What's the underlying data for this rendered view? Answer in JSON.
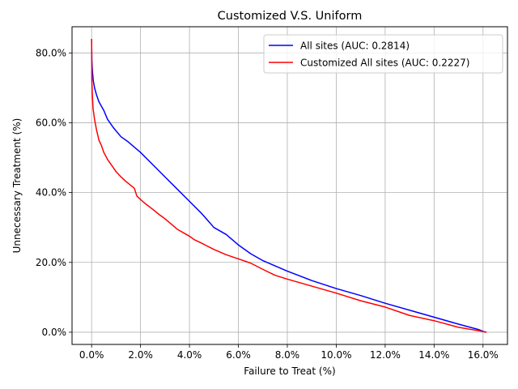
{
  "chart_data": {
    "type": "line",
    "title": "Customized V.S. Uniform",
    "xlabel": "Failure to Treat (%)",
    "ylabel": "Unnecessary Treatment (%)",
    "xlim": [
      -0.008,
      0.17
    ],
    "ylim": [
      -0.035,
      0.875
    ],
    "x_ticks": [
      0.0,
      0.02,
      0.04,
      0.06,
      0.08,
      0.1,
      0.12,
      0.14,
      0.16
    ],
    "x_tick_labels": [
      "0.0%",
      "2.0%",
      "4.0%",
      "6.0%",
      "8.0%",
      "10.0%",
      "12.0%",
      "14.0%",
      "16.0%"
    ],
    "y_ticks": [
      0.0,
      0.2,
      0.4,
      0.6,
      0.8
    ],
    "y_tick_labels": [
      "0.0%",
      "20.0%",
      "40.0%",
      "60.0%",
      "80.0%"
    ],
    "grid": true,
    "legend_position": "top-right",
    "series": [
      {
        "name": "All sites (AUC: 0.2814)",
        "color": "#0000ff",
        "points": [
          [
            0.0,
            0.84
          ],
          [
            0.0001,
            0.78
          ],
          [
            0.0003,
            0.75
          ],
          [
            0.0007,
            0.72
          ],
          [
            0.0012,
            0.7
          ],
          [
            0.002,
            0.68
          ],
          [
            0.003,
            0.66
          ],
          [
            0.005,
            0.635
          ],
          [
            0.0065,
            0.61
          ],
          [
            0.009,
            0.585
          ],
          [
            0.012,
            0.56
          ],
          [
            0.015,
            0.545
          ],
          [
            0.02,
            0.515
          ],
          [
            0.025,
            0.48
          ],
          [
            0.03,
            0.445
          ],
          [
            0.035,
            0.41
          ],
          [
            0.04,
            0.375
          ],
          [
            0.045,
            0.34
          ],
          [
            0.05,
            0.3
          ],
          [
            0.055,
            0.28
          ],
          [
            0.06,
            0.25
          ],
          [
            0.065,
            0.225
          ],
          [
            0.07,
            0.205
          ],
          [
            0.075,
            0.19
          ],
          [
            0.08,
            0.175
          ],
          [
            0.09,
            0.148
          ],
          [
            0.1,
            0.125
          ],
          [
            0.11,
            0.105
          ],
          [
            0.12,
            0.083
          ],
          [
            0.13,
            0.063
          ],
          [
            0.14,
            0.043
          ],
          [
            0.15,
            0.023
          ],
          [
            0.158,
            0.008
          ],
          [
            0.161,
            0.0
          ]
        ]
      },
      {
        "name": "Customized All sites (AUC: 0.2227)",
        "color": "#ff0000",
        "points": [
          [
            0.0,
            0.84
          ],
          [
            0.0001,
            0.72
          ],
          [
            0.0003,
            0.68
          ],
          [
            0.0006,
            0.64
          ],
          [
            0.0012,
            0.61
          ],
          [
            0.002,
            0.58
          ],
          [
            0.003,
            0.55
          ],
          [
            0.004,
            0.535
          ],
          [
            0.005,
            0.515
          ],
          [
            0.0065,
            0.495
          ],
          [
            0.0085,
            0.475
          ],
          [
            0.01,
            0.46
          ],
          [
            0.012,
            0.445
          ],
          [
            0.014,
            0.432
          ],
          [
            0.0175,
            0.412
          ],
          [
            0.0185,
            0.39
          ],
          [
            0.02,
            0.38
          ],
          [
            0.022,
            0.368
          ],
          [
            0.025,
            0.352
          ],
          [
            0.028,
            0.335
          ],
          [
            0.03,
            0.325
          ],
          [
            0.035,
            0.295
          ],
          [
            0.04,
            0.275
          ],
          [
            0.042,
            0.265
          ],
          [
            0.045,
            0.255
          ],
          [
            0.05,
            0.237
          ],
          [
            0.055,
            0.222
          ],
          [
            0.06,
            0.21
          ],
          [
            0.065,
            0.198
          ],
          [
            0.07,
            0.18
          ],
          [
            0.075,
            0.163
          ],
          [
            0.08,
            0.152
          ],
          [
            0.09,
            0.132
          ],
          [
            0.1,
            0.112
          ],
          [
            0.11,
            0.09
          ],
          [
            0.12,
            0.072
          ],
          [
            0.13,
            0.048
          ],
          [
            0.14,
            0.033
          ],
          [
            0.15,
            0.014
          ],
          [
            0.16,
            0.002
          ],
          [
            0.1615,
            0.0
          ]
        ]
      }
    ]
  }
}
